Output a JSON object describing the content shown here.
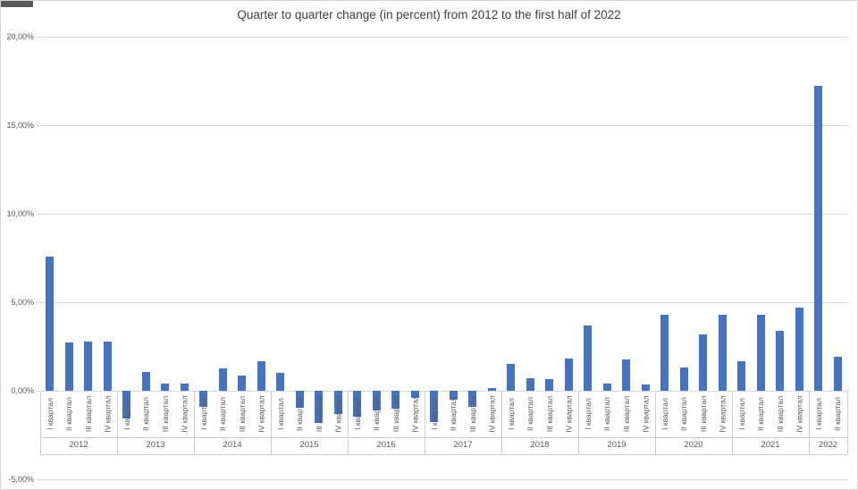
{
  "title": "Quarter to quarter change (in percent) from 2012 to the first half of 2022",
  "y_axis": {
    "tick_labels": [
      "20,00%",
      "15,00%",
      "10,00%",
      "5,00%",
      "0,00%",
      "-5,00%"
    ],
    "tick_values": [
      20,
      15,
      10,
      5,
      0,
      -5
    ]
  },
  "chart_data": {
    "type": "bar",
    "title": "Quarter to quarter change (in percent) from 2012 to the first half of 2022",
    "xlabel": "",
    "ylabel": "",
    "unit": "percent",
    "ylim": [
      -5,
      20
    ],
    "grid": true,
    "legend": "none",
    "quarter_labels": [
      "I квартал",
      "II квартал",
      "III квартал",
      "IV квартал"
    ],
    "groups": [
      {
        "year": "2012",
        "values": [
          7.6,
          2.75,
          2.8,
          2.8
        ]
      },
      {
        "year": "2013",
        "values": [
          -1.55,
          1.05,
          0.4,
          0.4
        ]
      },
      {
        "year": "2014",
        "values": [
          -0.9,
          1.25,
          0.85,
          1.65
        ]
      },
      {
        "year": "2015",
        "values": [
          1.0,
          -0.95,
          -1.8,
          -1.3
        ]
      },
      {
        "year": "2016",
        "values": [
          -1.45,
          -1.1,
          -1.0,
          -0.4
        ]
      },
      {
        "year": "2017",
        "values": [
          -1.75,
          -0.5,
          -0.9,
          0.15
        ]
      },
      {
        "year": "2018",
        "values": [
          1.5,
          0.7,
          0.65,
          1.8
        ]
      },
      {
        "year": "2019",
        "values": [
          3.7,
          0.4,
          1.75,
          0.35
        ]
      },
      {
        "year": "2020",
        "values": [
          4.3,
          1.3,
          3.2,
          4.3
        ]
      },
      {
        "year": "2021",
        "values": [
          1.65,
          4.3,
          3.4,
          4.7
        ]
      },
      {
        "year": "2022",
        "values": [
          17.2,
          1.9
        ]
      }
    ]
  },
  "colors": {
    "bar": "#4472C4",
    "gridline": "#D9D9D9",
    "axis_text": "#595959",
    "title_text": "#3F3F3F",
    "band_line": "#CCCCCC"
  }
}
